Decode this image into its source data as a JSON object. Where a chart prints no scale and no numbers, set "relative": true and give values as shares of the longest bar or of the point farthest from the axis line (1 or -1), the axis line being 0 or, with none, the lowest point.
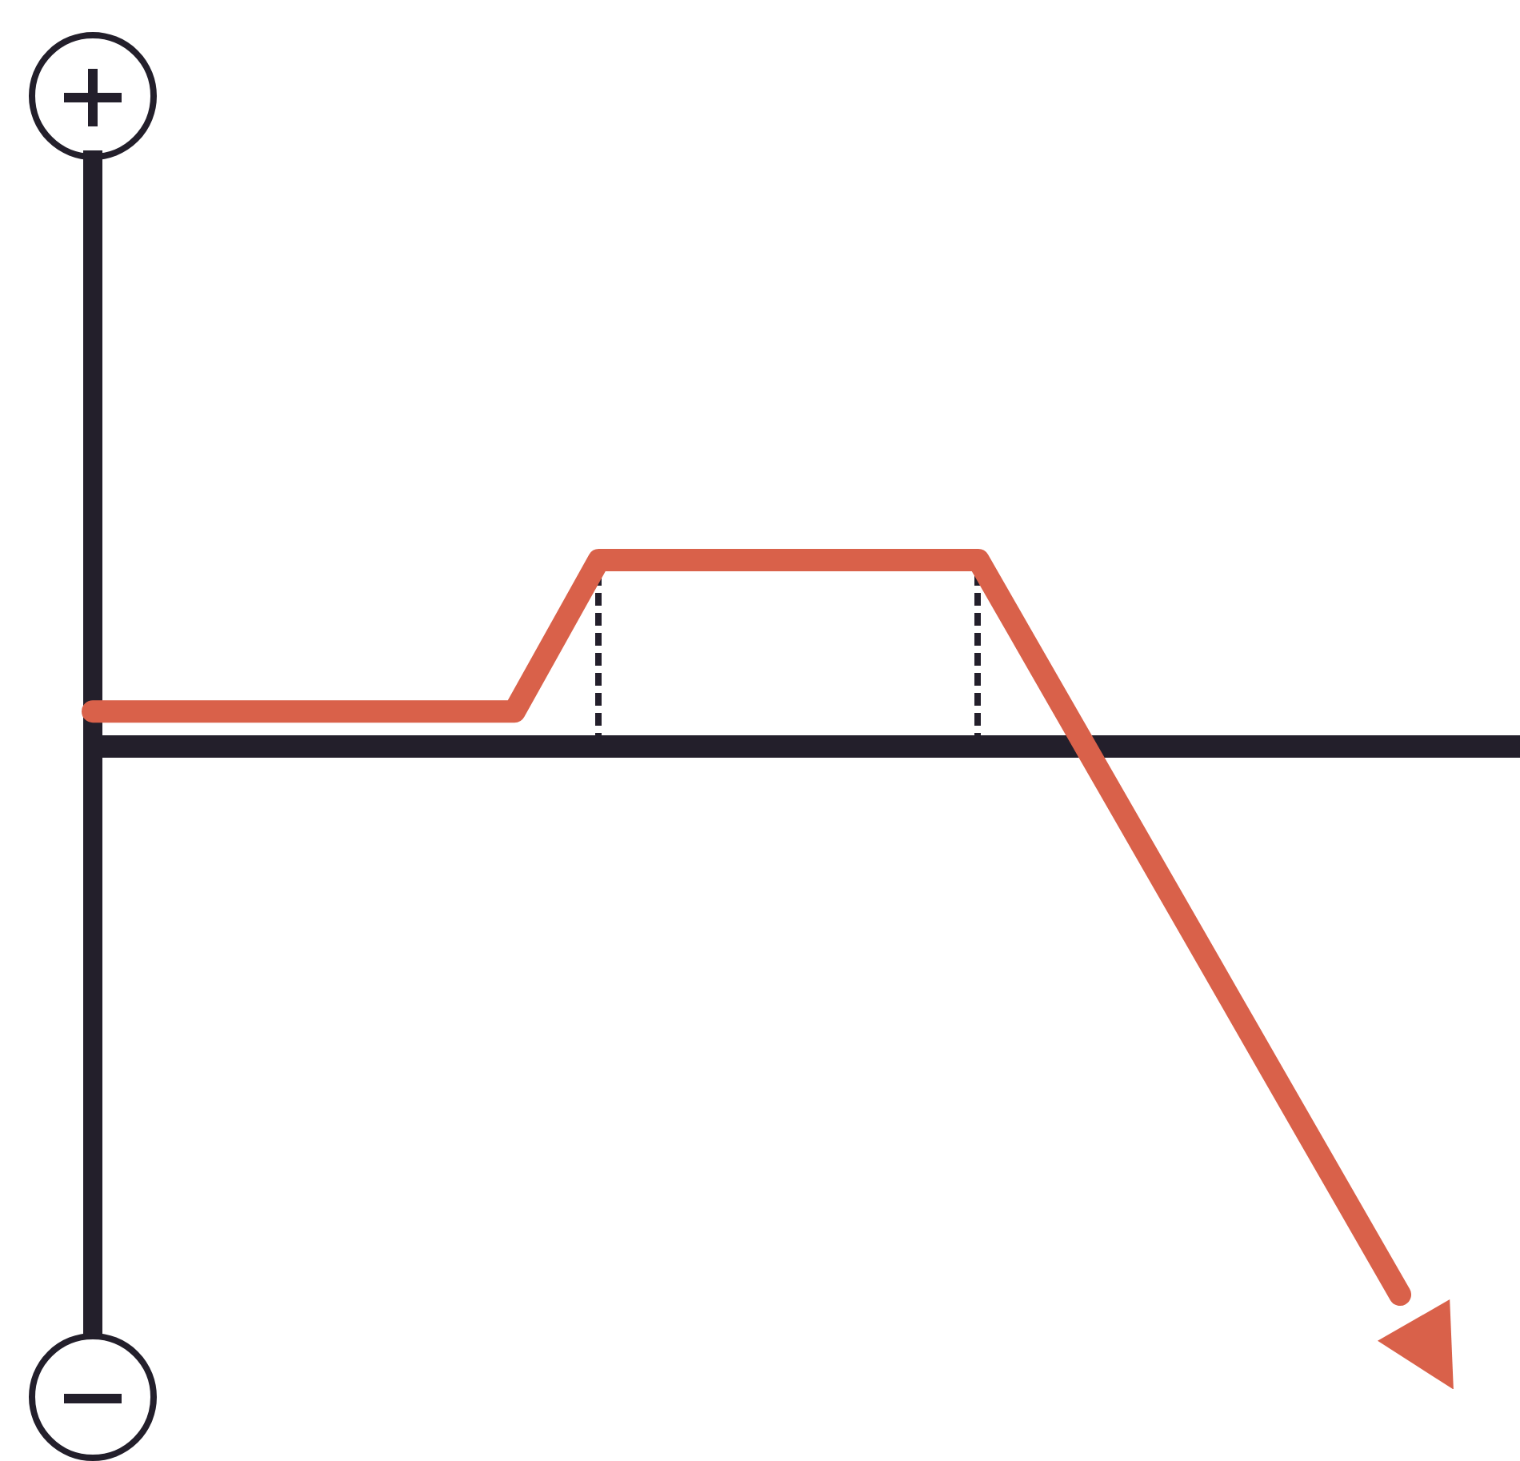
{
  "chart_data": {
    "type": "line",
    "relative": true,
    "marker": "none",
    "legend": false,
    "grid": false,
    "categories": [
      null,
      null,
      null,
      null,
      null,
      null,
      null,
      null,
      null,
      null,
      null,
      null,
      null,
      null,
      null,
      null,
      null,
      null,
      null,
      null,
      null,
      null,
      null,
      null,
      null,
      null,
      null,
      null,
      null,
      null,
      null,
      null
    ],
    "series": [
      {
        "color": "#d9614a",
        "values": [
          0.064,
          0.064,
          0.064,
          0.064,
          0.064,
          0.064,
          0.064,
          0.064,
          0.064,
          0.064,
          0.064,
          0.202,
          0.34,
          0.34,
          0.34,
          0.34,
          0.34,
          0.34,
          0.34,
          0.34,
          0.34,
          0.34,
          0.206,
          0.072,
          -0.062,
          -0.196,
          -0.33,
          -0.464,
          -0.598,
          -0.732,
          -0.866,
          -1.0
        ]
      }
    ]
  }
}
